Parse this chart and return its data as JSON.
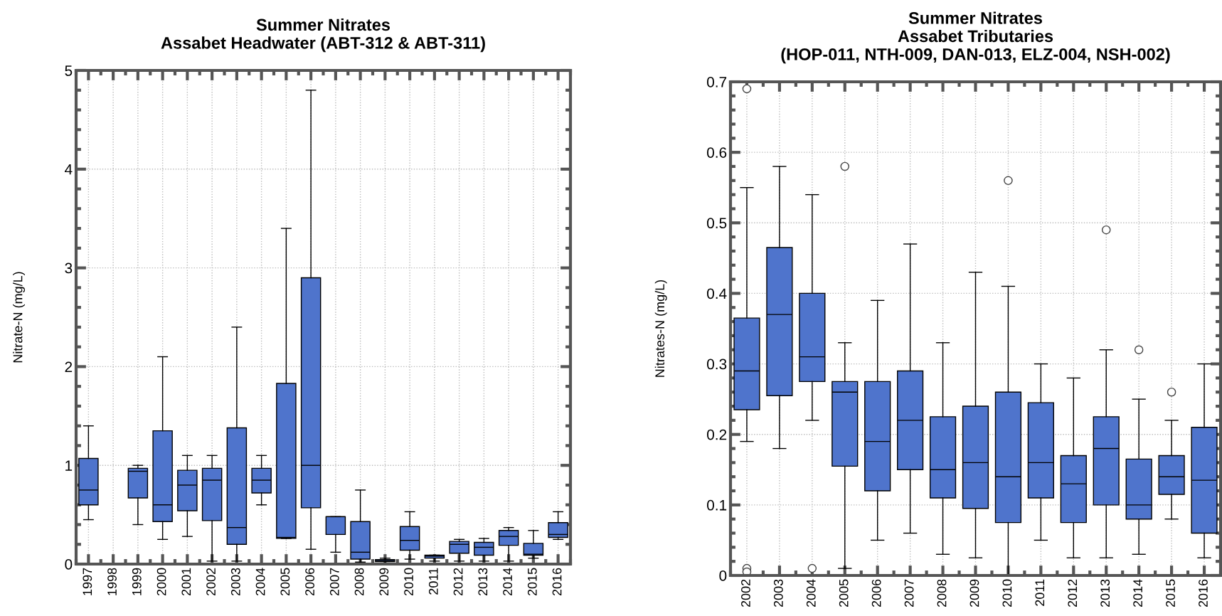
{
  "chart_data": [
    {
      "type": "box",
      "title": "Summer Nitrates\nAssabet Headwater (ABT-312 & ABT-311)",
      "ylabel": "Nitrate-N (mg/L)",
      "color": "#4f74cc",
      "grid": true,
      "ylim": [
        0,
        5
      ],
      "yticks": [
        0,
        1,
        2,
        3,
        4,
        5
      ],
      "categories": [
        "1997",
        "1998",
        "1999",
        "2000",
        "2001",
        "2002",
        "2003",
        "2004",
        "2005",
        "2006",
        "2007",
        "2008",
        "2009",
        "2010",
        "2011",
        "2012",
        "2013",
        "2014",
        "2015",
        "2016"
      ],
      "boxes": [
        {
          "low": 0.45,
          "q1": 0.6,
          "median": 0.75,
          "q3": 1.07,
          "high": 1.4
        },
        null,
        {
          "low": 0.4,
          "q1": 0.67,
          "median": 0.94,
          "q3": 0.97,
          "high": 1.0
        },
        {
          "low": 0.25,
          "q1": 0.43,
          "median": 0.6,
          "q3": 1.35,
          "high": 2.1
        },
        {
          "low": 0.28,
          "q1": 0.54,
          "median": 0.8,
          "q3": 0.95,
          "high": 1.1
        },
        {
          "low": 0.03,
          "q1": 0.44,
          "median": 0.85,
          "q3": 0.97,
          "high": 1.1
        },
        {
          "low": 0.03,
          "q1": 0.2,
          "median": 0.37,
          "q3": 1.38,
          "high": 2.4
        },
        {
          "low": 0.6,
          "q1": 0.72,
          "median": 0.85,
          "q3": 0.97,
          "high": 1.1
        },
        {
          "low": 0.26,
          "q1": 0.26,
          "median": 0.27,
          "q3": 1.83,
          "high": 3.4
        },
        {
          "low": 0.15,
          "q1": 0.57,
          "median": 1.0,
          "q3": 2.9,
          "high": 4.8
        },
        {
          "low": 0.12,
          "q1": 0.3,
          "median": 0.48,
          "q3": 0.48,
          "high": 0.48
        },
        {
          "low": 0.02,
          "q1": 0.05,
          "median": 0.12,
          "q3": 0.43,
          "high": 0.75
        },
        {
          "low": 0.01,
          "q1": 0.025,
          "median": 0.035,
          "q3": 0.045,
          "high": 0.06
        },
        {
          "low": 0.05,
          "q1": 0.14,
          "median": 0.24,
          "q3": 0.38,
          "high": 0.53
        },
        {
          "low": 0.03,
          "q1": 0.06,
          "median": 0.08,
          "q3": 0.09,
          "high": 0.09
        },
        {
          "low": 0.03,
          "q1": 0.11,
          "median": 0.2,
          "q3": 0.23,
          "high": 0.25
        },
        {
          "low": 0.03,
          "q1": 0.09,
          "median": 0.17,
          "q3": 0.22,
          "high": 0.26
        },
        {
          "low": 0.03,
          "q1": 0.19,
          "median": 0.28,
          "q3": 0.34,
          "high": 0.37
        },
        {
          "low": 0.06,
          "q1": 0.09,
          "median": 0.1,
          "q3": 0.21,
          "high": 0.34
        },
        {
          "low": 0.25,
          "q1": 0.27,
          "median": 0.3,
          "q3": 0.42,
          "high": 0.53
        }
      ]
    },
    {
      "type": "box",
      "title": "Summer Nitrates\nAssabet Tributaries\n(HOP-011, NTH-009, DAN-013, ELZ-004, NSH-002)",
      "ylabel": "Nitrates-N (mg/L)",
      "color": "#4f74cc",
      "grid": true,
      "ylim": [
        0,
        0.7
      ],
      "yticks": [
        0,
        0.1,
        0.2,
        0.3,
        0.4,
        0.5,
        0.6,
        0.7
      ],
      "categories": [
        "2002",
        "2003",
        "2004",
        "2005",
        "2006",
        "2007",
        "2008",
        "2009",
        "2010",
        "2011",
        "2012",
        "2013",
        "2014",
        "2015",
        "2016"
      ],
      "boxes": [
        {
          "low": 0.19,
          "q1": 0.235,
          "median": 0.29,
          "q3": 0.365,
          "high": 0.55,
          "outliers": [
            0.69,
            0.01,
            0.005
          ]
        },
        {
          "low": 0.18,
          "q1": 0.255,
          "median": 0.37,
          "q3": 0.465,
          "high": 0.58
        },
        {
          "low": 0.22,
          "q1": 0.275,
          "median": 0.31,
          "q3": 0.4,
          "high": 0.54,
          "outliers": [
            0.01
          ]
        },
        {
          "low": 0.01,
          "q1": 0.155,
          "median": 0.26,
          "q3": 0.275,
          "high": 0.33,
          "outliers": [
            0.58
          ]
        },
        {
          "low": 0.05,
          "q1": 0.12,
          "median": 0.19,
          "q3": 0.275,
          "high": 0.39
        },
        {
          "low": 0.06,
          "q1": 0.15,
          "median": 0.22,
          "q3": 0.29,
          "high": 0.47
        },
        {
          "low": 0.03,
          "q1": 0.11,
          "median": 0.15,
          "q3": 0.225,
          "high": 0.33
        },
        {
          "low": 0.025,
          "q1": 0.095,
          "median": 0.16,
          "q3": 0.24,
          "high": 0.43
        },
        {
          "low": 0.0,
          "q1": 0.075,
          "median": 0.14,
          "q3": 0.26,
          "high": 0.41,
          "outliers": [
            0.56
          ]
        },
        {
          "low": 0.05,
          "q1": 0.11,
          "median": 0.16,
          "q3": 0.245,
          "high": 0.3
        },
        {
          "low": 0.025,
          "q1": 0.075,
          "median": 0.13,
          "q3": 0.17,
          "high": 0.28
        },
        {
          "low": 0.025,
          "q1": 0.1,
          "median": 0.18,
          "q3": 0.225,
          "high": 0.32,
          "outliers": [
            0.49
          ]
        },
        {
          "low": 0.03,
          "q1": 0.08,
          "median": 0.1,
          "q3": 0.165,
          "high": 0.25,
          "outliers": [
            0.32
          ]
        },
        {
          "low": 0.08,
          "q1": 0.115,
          "median": 0.14,
          "q3": 0.17,
          "high": 0.22,
          "outliers": [
            0.26
          ]
        },
        {
          "low": 0.025,
          "q1": 0.06,
          "median": 0.135,
          "q3": 0.21,
          "high": 0.3
        }
      ]
    }
  ]
}
